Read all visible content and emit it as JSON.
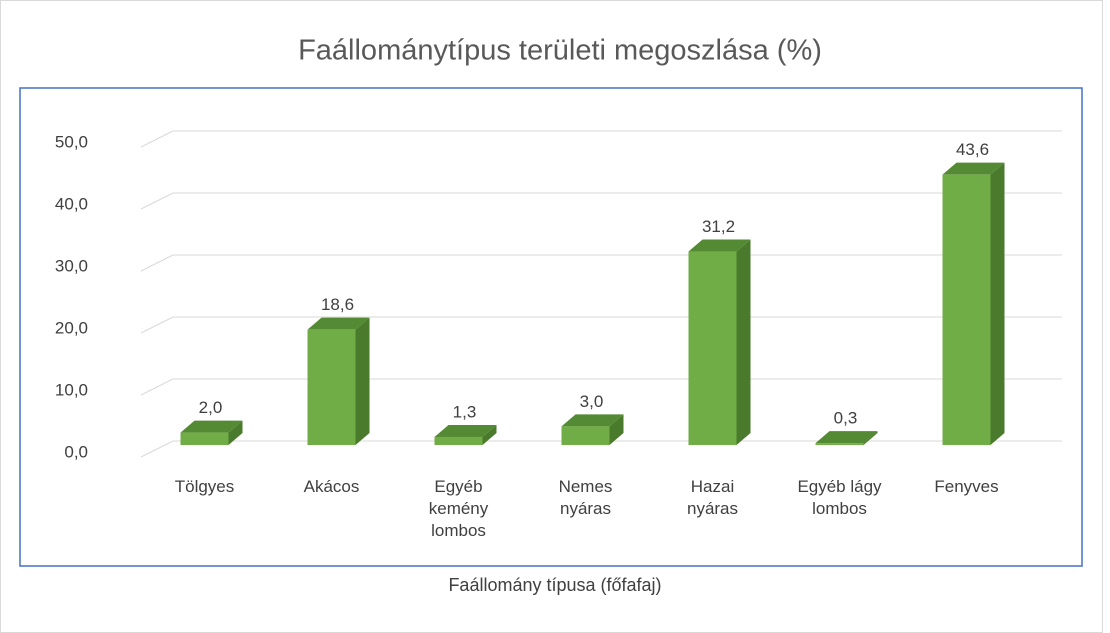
{
  "chart_data": {
    "type": "bar3d",
    "title": "Faállománytípus területi megoszlása (%)",
    "x_label": "Faállomány típusa (főfafaj)",
    "categories": [
      "Tölgyes",
      "Akácos",
      "Egyéb kemény lombos",
      "Nemes nyáras",
      "Hazai nyáras",
      "Egyéb lágy lombos",
      "Fenyves"
    ],
    "values": [
      2.0,
      18.6,
      1.3,
      3.0,
      31.2,
      0.3,
      43.6
    ],
    "value_labels": [
      "2,0",
      "18,6",
      "1,3",
      "3,0",
      "31,2",
      "0,3",
      "43,6"
    ],
    "color": "#70ad47",
    "ylim": [
      0,
      50
    ],
    "yticks": [
      {
        "value": 0,
        "label": "0,0"
      },
      {
        "value": 10,
        "label": "10,0"
      },
      {
        "value": 20,
        "label": "20,0"
      },
      {
        "value": 30,
        "label": "30,0"
      },
      {
        "value": 40,
        "label": "40,0"
      },
      {
        "value": 50,
        "label": "50,0"
      }
    ],
    "grid": true
  }
}
